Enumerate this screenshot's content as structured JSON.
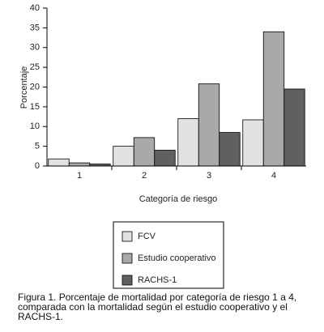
{
  "chart_data": {
    "type": "bar",
    "y_label": "Porcentaje",
    "x_label": "Categoría de riesgo",
    "categories": [
      "1",
      "2",
      "3",
      "4"
    ],
    "series": [
      {
        "name": "FCV",
        "color": "#e2e2e2",
        "values": [
          1.8,
          5,
          12,
          11.7
        ]
      },
      {
        "name": "Estudio cooperativo",
        "color": "#a9a9a9",
        "values": [
          0.8,
          7.2,
          20.8,
          34
        ]
      },
      {
        "name": "RACHS-1",
        "color": "#606060",
        "values": [
          0.5,
          4,
          8.5,
          19.5
        ]
      }
    ],
    "ylim": [
      0,
      40
    ],
    "yticks": [
      0,
      5,
      10,
      15,
      20,
      25,
      30,
      35,
      40
    ],
    "grid": false,
    "caption": "Figura 1. Porcentaje de mortalidad por categoría de riesgo 1 a 4, comparada con la mortalidad según el estudio cooperativo y el RACHS-1."
  }
}
